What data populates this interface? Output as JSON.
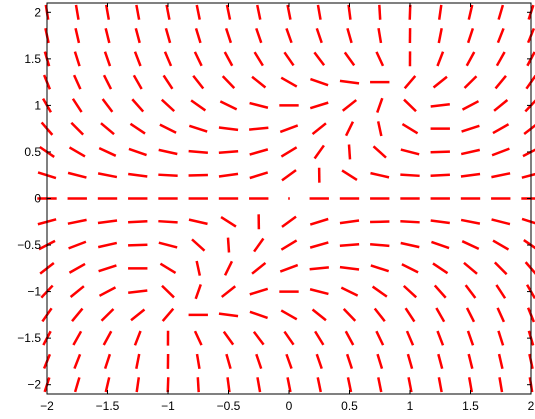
{
  "chart_data": {
    "type": "direction-field",
    "title": "",
    "xlabel": "",
    "ylabel": "",
    "xlim": [
      -2,
      2
    ],
    "ylim": [
      -2.1,
      2.1
    ],
    "grid": false,
    "legend": "none",
    "x_ticks": [
      "−2",
      "−1.5",
      "−1",
      "−0.5",
      "0",
      "0.5",
      "1",
      "1.5",
      "2"
    ],
    "x_tick_values": [
      -2,
      -1.5,
      -1,
      -0.5,
      0,
      0.5,
      1,
      1.5,
      2
    ],
    "y_ticks": [
      "2",
      "1.5",
      "1",
      "0.5",
      "0",
      "−0.5",
      "−1",
      "−1.5",
      "−2"
    ],
    "y_tick_values": [
      2,
      1.5,
      1,
      0.5,
      0,
      -0.5,
      -1,
      -1.5,
      -2
    ],
    "field": {
      "equation": "dy/dx = y*(x^2 + y^2 - 1.2*x*y - 1) / (x - sin(y))",
      "x_samples": [
        -2.0,
        -1.75,
        -1.5,
        -1.25,
        -1.0,
        -0.75,
        -0.5,
        -0.25,
        0.0,
        0.25,
        0.5,
        0.75,
        1.0,
        1.25,
        1.5,
        1.75,
        2.0
      ],
      "y_samples": [
        -2.0,
        -1.75,
        -1.5,
        -1.25,
        -1.0,
        -0.75,
        -0.5,
        -0.25,
        0.0,
        0.25,
        0.5,
        0.75,
        1.0,
        1.25,
        1.5,
        1.75,
        2.0
      ],
      "segment_length": 0.16,
      "color": "#ff0000"
    }
  }
}
